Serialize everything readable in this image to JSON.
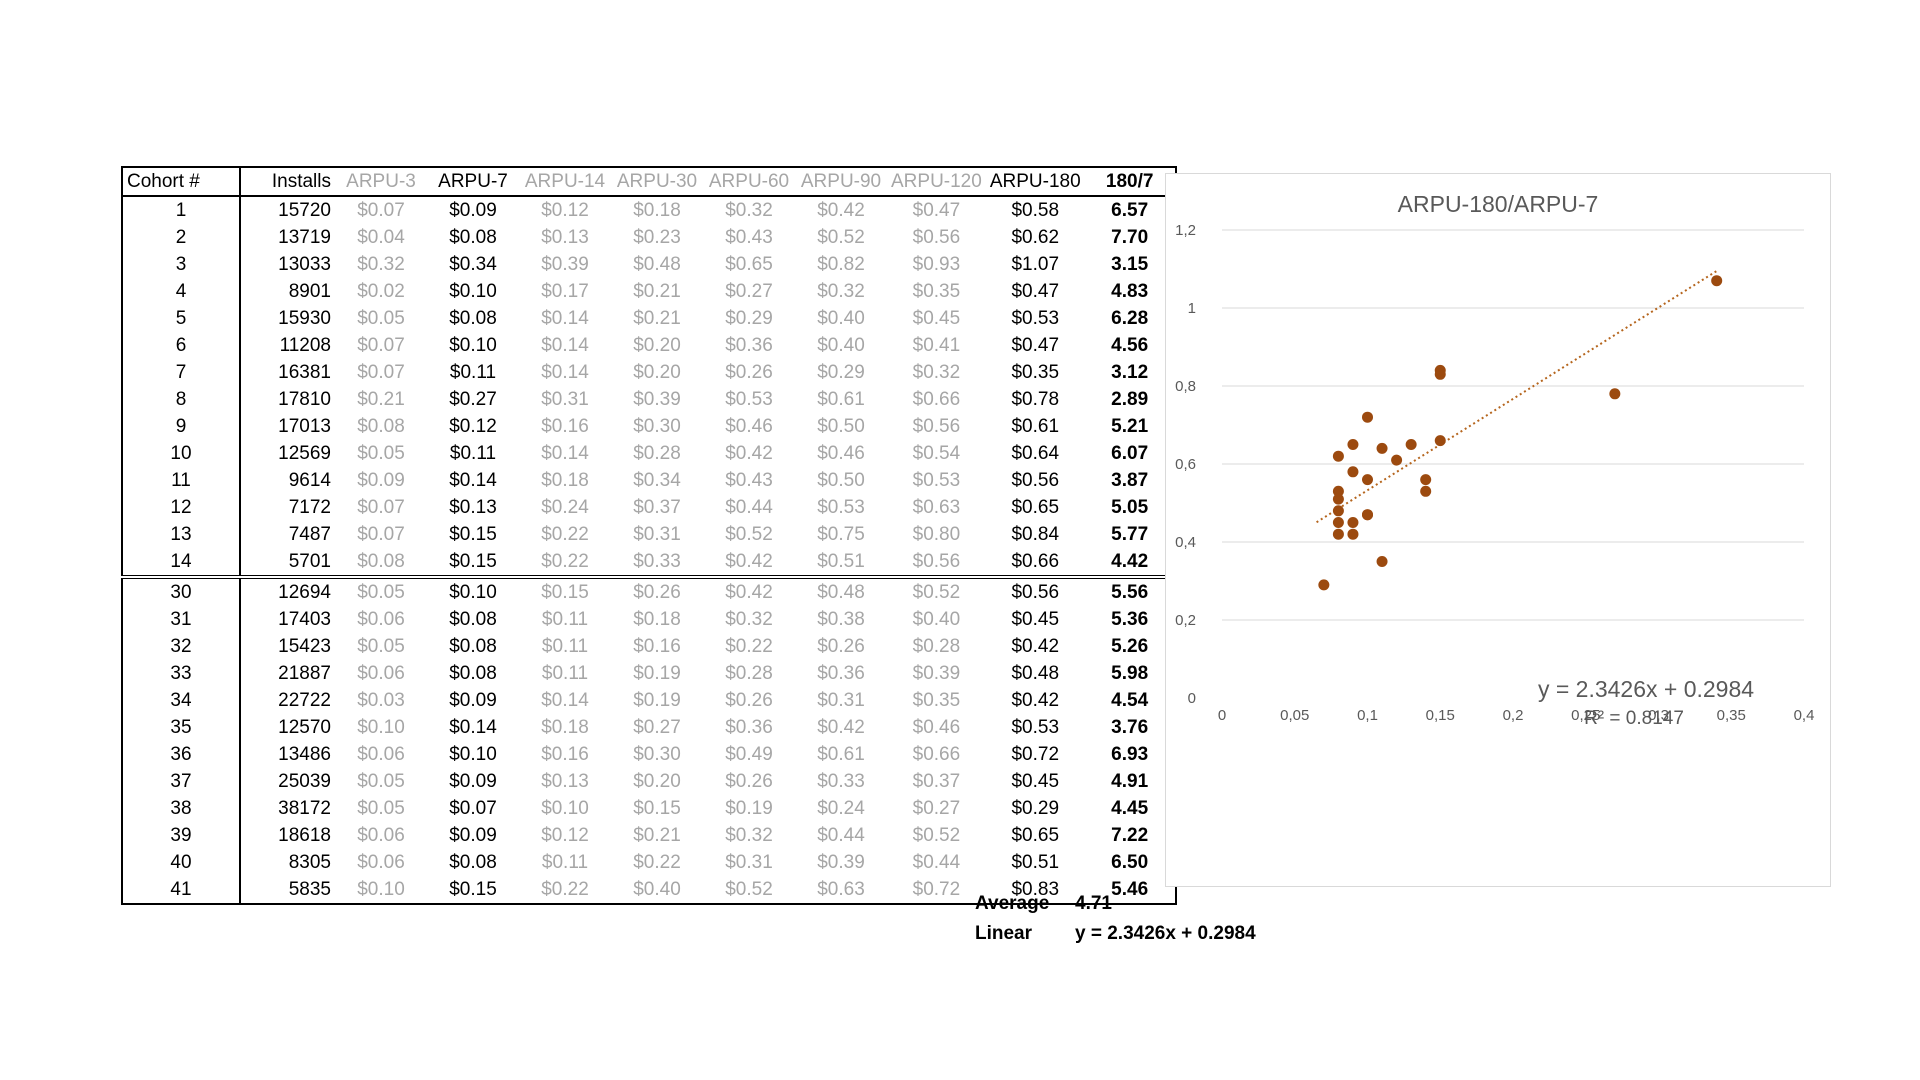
{
  "table": {
    "headers": [
      "Cohort #",
      "Installs",
      "ARPU-3",
      "ARPU-7",
      "ARPU-14",
      "ARPU-30",
      "ARPU-60",
      "ARPU-90",
      "ARPU-120",
      "ARPU-180",
      "180/7"
    ],
    "group1": [
      [
        "1",
        "15720",
        "$0.07",
        "$0.09",
        "$0.12",
        "$0.18",
        "$0.32",
        "$0.42",
        "$0.47",
        "$0.58",
        "6.57"
      ],
      [
        "2",
        "13719",
        "$0.04",
        "$0.08",
        "$0.13",
        "$0.23",
        "$0.43",
        "$0.52",
        "$0.56",
        "$0.62",
        "7.70"
      ],
      [
        "3",
        "13033",
        "$0.32",
        "$0.34",
        "$0.39",
        "$0.48",
        "$0.65",
        "$0.82",
        "$0.93",
        "$1.07",
        "3.15"
      ],
      [
        "4",
        "8901",
        "$0.02",
        "$0.10",
        "$0.17",
        "$0.21",
        "$0.27",
        "$0.32",
        "$0.35",
        "$0.47",
        "4.83"
      ],
      [
        "5",
        "15930",
        "$0.05",
        "$0.08",
        "$0.14",
        "$0.21",
        "$0.29",
        "$0.40",
        "$0.45",
        "$0.53",
        "6.28"
      ],
      [
        "6",
        "11208",
        "$0.07",
        "$0.10",
        "$0.14",
        "$0.20",
        "$0.36",
        "$0.40",
        "$0.41",
        "$0.47",
        "4.56"
      ],
      [
        "7",
        "16381",
        "$0.07",
        "$0.11",
        "$0.14",
        "$0.20",
        "$0.26",
        "$0.29",
        "$0.32",
        "$0.35",
        "3.12"
      ],
      [
        "8",
        "17810",
        "$0.21",
        "$0.27",
        "$0.31",
        "$0.39",
        "$0.53",
        "$0.61",
        "$0.66",
        "$0.78",
        "2.89"
      ],
      [
        "9",
        "17013",
        "$0.08",
        "$0.12",
        "$0.16",
        "$0.30",
        "$0.46",
        "$0.50",
        "$0.56",
        "$0.61",
        "5.21"
      ],
      [
        "10",
        "12569",
        "$0.05",
        "$0.11",
        "$0.14",
        "$0.28",
        "$0.42",
        "$0.46",
        "$0.54",
        "$0.64",
        "6.07"
      ],
      [
        "11",
        "9614",
        "$0.09",
        "$0.14",
        "$0.18",
        "$0.34",
        "$0.43",
        "$0.50",
        "$0.53",
        "$0.56",
        "3.87"
      ],
      [
        "12",
        "7172",
        "$0.07",
        "$0.13",
        "$0.24",
        "$0.37",
        "$0.44",
        "$0.53",
        "$0.63",
        "$0.65",
        "5.05"
      ],
      [
        "13",
        "7487",
        "$0.07",
        "$0.15",
        "$0.22",
        "$0.31",
        "$0.52",
        "$0.75",
        "$0.80",
        "$0.84",
        "5.77"
      ],
      [
        "14",
        "5701",
        "$0.08",
        "$0.15",
        "$0.22",
        "$0.33",
        "$0.42",
        "$0.51",
        "$0.56",
        "$0.66",
        "4.42"
      ]
    ],
    "group2": [
      [
        "30",
        "12694",
        "$0.05",
        "$0.10",
        "$0.15",
        "$0.26",
        "$0.42",
        "$0.48",
        "$0.52",
        "$0.56",
        "5.56"
      ],
      [
        "31",
        "17403",
        "$0.06",
        "$0.08",
        "$0.11",
        "$0.18",
        "$0.32",
        "$0.38",
        "$0.40",
        "$0.45",
        "5.36"
      ],
      [
        "32",
        "15423",
        "$0.05",
        "$0.08",
        "$0.11",
        "$0.16",
        "$0.22",
        "$0.26",
        "$0.28",
        "$0.42",
        "5.26"
      ],
      [
        "33",
        "21887",
        "$0.06",
        "$0.08",
        "$0.11",
        "$0.19",
        "$0.28",
        "$0.36",
        "$0.39",
        "$0.48",
        "5.98"
      ],
      [
        "34",
        "22722",
        "$0.03",
        "$0.09",
        "$0.14",
        "$0.19",
        "$0.26",
        "$0.31",
        "$0.35",
        "$0.42",
        "4.54"
      ],
      [
        "35",
        "12570",
        "$0.10",
        "$0.14",
        "$0.18",
        "$0.27",
        "$0.36",
        "$0.42",
        "$0.46",
        "$0.53",
        "3.76"
      ],
      [
        "36",
        "13486",
        "$0.06",
        "$0.10",
        "$0.16",
        "$0.30",
        "$0.49",
        "$0.61",
        "$0.66",
        "$0.72",
        "6.93"
      ],
      [
        "37",
        "25039",
        "$0.05",
        "$0.09",
        "$0.13",
        "$0.20",
        "$0.26",
        "$0.33",
        "$0.37",
        "$0.45",
        "4.91"
      ],
      [
        "38",
        "38172",
        "$0.05",
        "$0.07",
        "$0.10",
        "$0.15",
        "$0.19",
        "$0.24",
        "$0.27",
        "$0.29",
        "4.45"
      ],
      [
        "39",
        "18618",
        "$0.06",
        "$0.09",
        "$0.12",
        "$0.21",
        "$0.32",
        "$0.44",
        "$0.52",
        "$0.65",
        "7.22"
      ],
      [
        "40",
        "8305",
        "$0.06",
        "$0.08",
        "$0.11",
        "$0.22",
        "$0.31",
        "$0.39",
        "$0.44",
        "$0.51",
        "6.50"
      ],
      [
        "41",
        "5835",
        "$0.10",
        "$0.15",
        "$0.22",
        "$0.40",
        "$0.52",
        "$0.63",
        "$0.72",
        "$0.83",
        "5.46"
      ]
    ],
    "summary": {
      "average_label": "Average",
      "average_value": "4.71",
      "linear_label": "Linear",
      "linear_value": "y = 2.3426x + 0.2984"
    }
  },
  "chart_data": {
    "type": "scatter",
    "title": "ARPU-180/ARPU-7",
    "x_ticks": [
      "0",
      "0,05",
      "0,1",
      "0,15",
      "0,2",
      "0,25",
      "0,3",
      "0,35",
      "0,4"
    ],
    "y_ticks": [
      "0",
      "0,2",
      "0,4",
      "0,6",
      "0,8",
      "1",
      "1,2"
    ],
    "xlim": [
      0,
      0.4
    ],
    "ylim": [
      0,
      1.2
    ],
    "grid": "horizontal",
    "trendline": {
      "type": "linear",
      "slope": 2.3426,
      "intercept": 0.2984,
      "style": "dotted",
      "label": "y = 2.3426x + 0.2984",
      "r2_label": "R² = 0.8147",
      "x_range": [
        0.065,
        0.34
      ]
    },
    "colors": {
      "marker": "#9c4a0f",
      "trendline": "#b5651d"
    },
    "points": [
      [
        0.09,
        0.58
      ],
      [
        0.08,
        0.62
      ],
      [
        0.34,
        1.07
      ],
      [
        0.1,
        0.47
      ],
      [
        0.08,
        0.53
      ],
      [
        0.1,
        0.47
      ],
      [
        0.11,
        0.35
      ],
      [
        0.27,
        0.78
      ],
      [
        0.12,
        0.61
      ],
      [
        0.11,
        0.64
      ],
      [
        0.14,
        0.56
      ],
      [
        0.13,
        0.65
      ],
      [
        0.15,
        0.84
      ],
      [
        0.15,
        0.66
      ],
      [
        0.1,
        0.56
      ],
      [
        0.08,
        0.45
      ],
      [
        0.08,
        0.42
      ],
      [
        0.08,
        0.48
      ],
      [
        0.09,
        0.42
      ],
      [
        0.14,
        0.53
      ],
      [
        0.1,
        0.72
      ],
      [
        0.09,
        0.45
      ],
      [
        0.07,
        0.29
      ],
      [
        0.09,
        0.65
      ],
      [
        0.08,
        0.51
      ],
      [
        0.15,
        0.83
      ]
    ]
  }
}
